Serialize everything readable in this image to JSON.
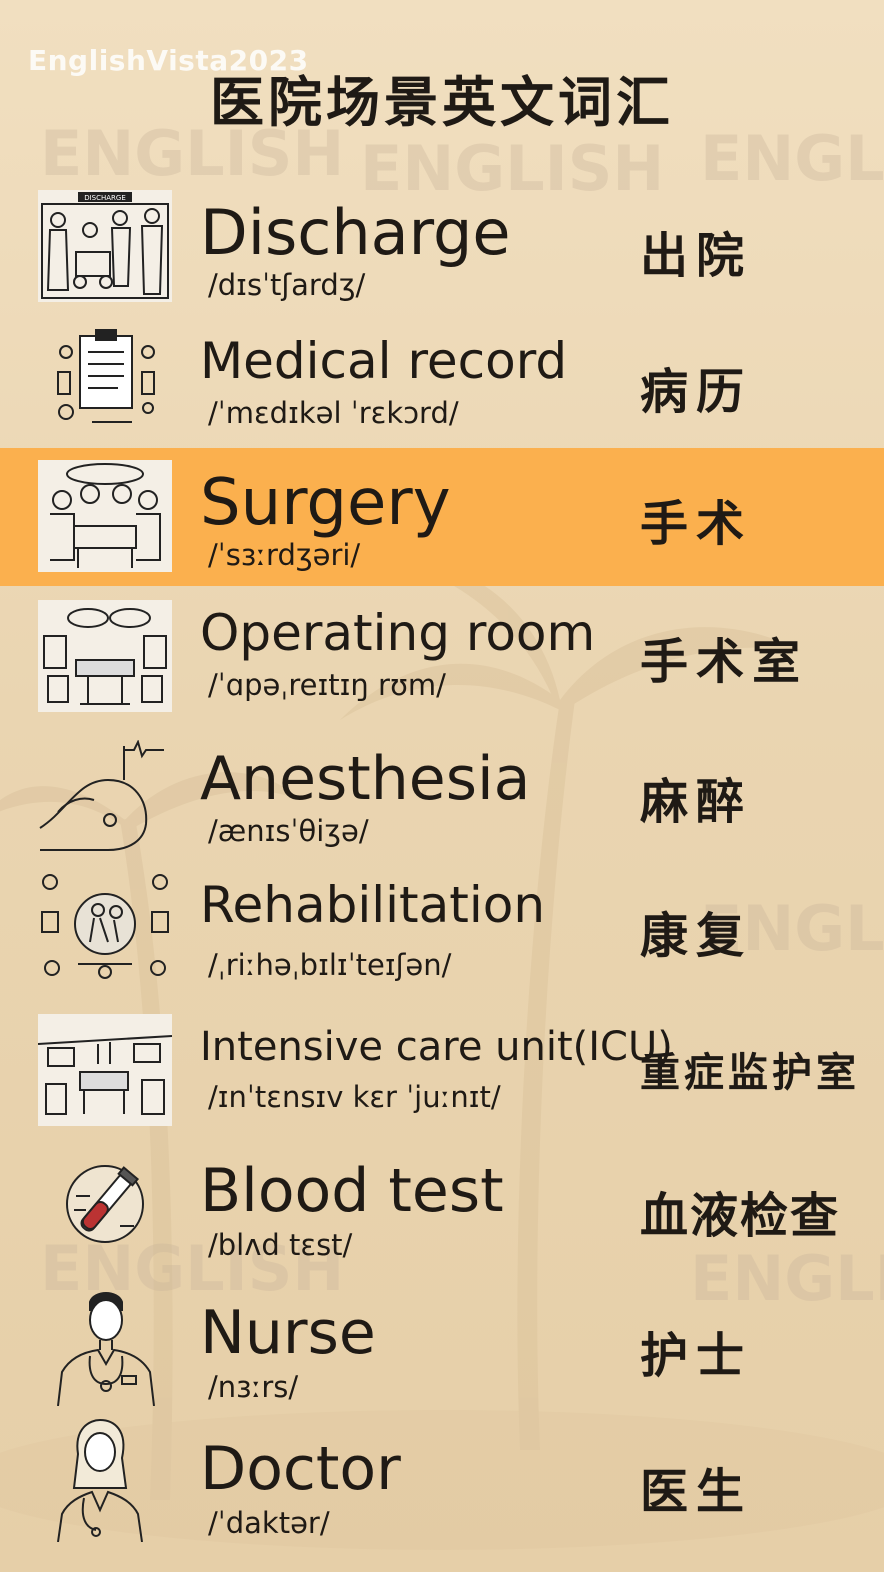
{
  "watermark": "EnglishVista2023",
  "title": "医院场景英文词汇",
  "colors": {
    "background": "#ecd8b4",
    "highlight": "#fbb04e",
    "text": "#1f1a15"
  },
  "items": [
    {
      "word": "Discharge",
      "ipa": "/dɪsˈtʃardʒ/",
      "zh": "出院",
      "icon": "discharge-illustration",
      "thumb_label": "DISCHARGE"
    },
    {
      "word": "Medical record",
      "ipa": "/ˈmɛdɪkəl ˈrɛkɔrd/",
      "zh": "病历",
      "icon": "medical-record-illustration"
    },
    {
      "word": "Surgery",
      "ipa": "/ˈsɜːrdʒəri/",
      "zh": "手术",
      "icon": "surgery-illustration",
      "highlighted": true
    },
    {
      "word": "Operating room",
      "ipa": "/ˈɑpəˌreɪtɪŋ rʊm/",
      "zh": "手术室",
      "icon": "operating-room-illustration"
    },
    {
      "word": "Anesthesia",
      "ipa": "/ænɪsˈθiʒə/",
      "zh": "麻醉",
      "icon": "anesthesia-illustration"
    },
    {
      "word": "Rehabilitation",
      "ipa": "/ˌriːhəˌbɪlɪˈteɪʃən/",
      "zh": "康复",
      "icon": "rehabilitation-illustration"
    },
    {
      "word": "Intensive care unit(ICU)",
      "ipa": "/ɪnˈtɛnsɪv kɛr ˈjuːnɪt/",
      "zh": "重症监护室",
      "icon": "icu-illustration"
    },
    {
      "word": "Blood test",
      "ipa": "/blʌd tɛst/",
      "zh": "血液检查",
      "icon": "blood-test-illustration"
    },
    {
      "word": "Nurse",
      "ipa": "/nɜːrs/",
      "zh": "护士",
      "icon": "nurse-illustration"
    },
    {
      "word": "Doctor",
      "ipa": "/ˈdaktər/",
      "zh": "医生",
      "icon": "doctor-illustration"
    }
  ]
}
